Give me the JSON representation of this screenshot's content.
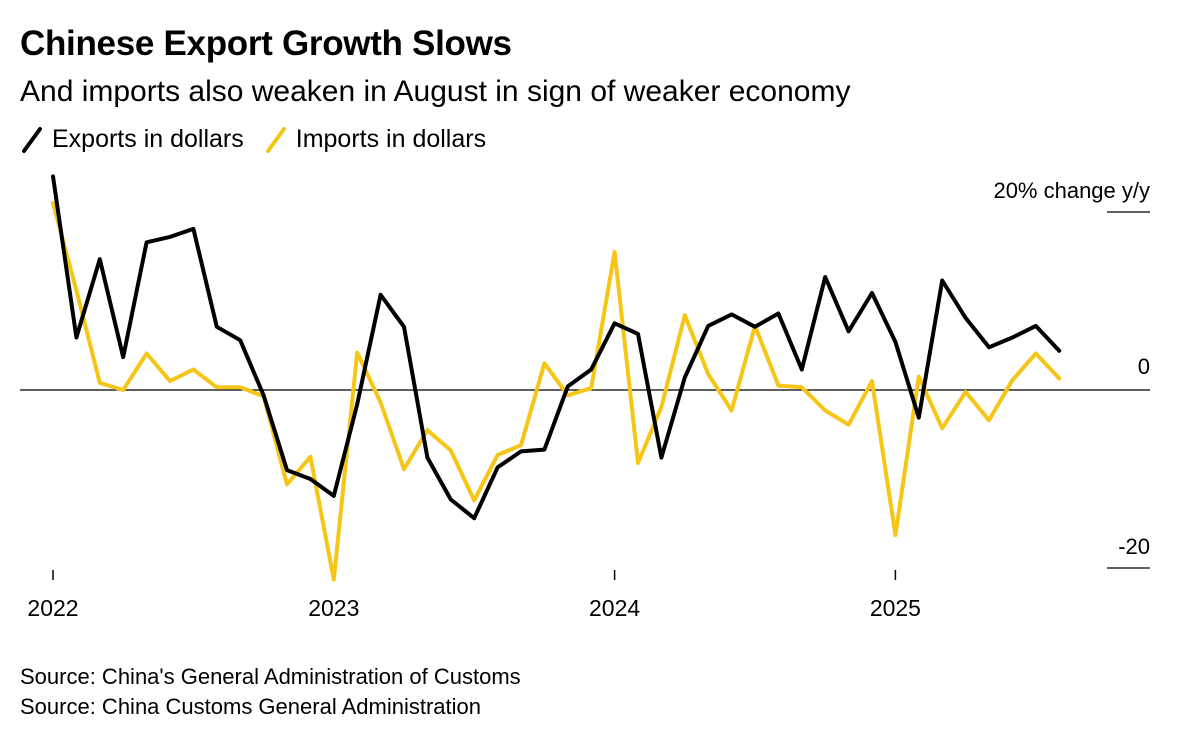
{
  "title": "Chinese Export Growth Slows",
  "subtitle": "And imports also weaken in August in sign of weaker economy",
  "legend": [
    {
      "label": "Exports in dollars",
      "color": "#000000"
    },
    {
      "label": "Imports in dollars",
      "color": "#f5c518"
    }
  ],
  "sources": [
    "Source: China's General Administration of Customs",
    "Source: China Customs General Administration"
  ],
  "chart_data": {
    "type": "line",
    "title": "Chinese Export Growth Slows",
    "subtitle": "And imports also weaken in August in sign of weaker economy",
    "ylabel": "% change y/y",
    "ylim": [
      -20,
      20
    ],
    "y_ticks": [
      {
        "value": 20,
        "label": "20% change y/y"
      },
      {
        "value": 0,
        "label": "0"
      },
      {
        "value": -20,
        "label": "-20"
      }
    ],
    "x_ticks": [
      {
        "index": 0,
        "label": "2022"
      },
      {
        "index": 12,
        "label": "2023"
      },
      {
        "index": 24,
        "label": "2024"
      },
      {
        "index": 36,
        "label": "2025"
      }
    ],
    "x_start": "2022-01",
    "x_end": "2025-08",
    "series": [
      {
        "name": "Exports in dollars",
        "color": "#000000",
        "values": [
          24.0,
          5.9,
          14.7,
          3.7,
          16.6,
          17.2,
          18.1,
          7.1,
          5.6,
          -0.6,
          -9.0,
          -10.0,
          -11.9,
          -1.6,
          10.7,
          7.1,
          -7.6,
          -12.3,
          -14.4,
          -8.7,
          -6.9,
          -6.7,
          0.4,
          2.3,
          7.5,
          6.3,
          -7.6,
          1.4,
          7.2,
          8.5,
          7.1,
          8.6,
          2.3,
          12.7,
          6.6,
          10.9,
          5.4,
          -3.1,
          12.3,
          8.1,
          4.8,
          5.9,
          7.2,
          4.4
        ],
        "values_note": "monthly Jan 2022 - Aug 2025"
      },
      {
        "name": "Imports in dollars",
        "color": "#f5c518",
        "values": [
          21.0,
          11.2,
          0.8,
          0.0,
          4.1,
          1.0,
          2.3,
          0.3,
          0.3,
          -0.7,
          -10.6,
          -7.5,
          -21.3,
          4.2,
          -1.4,
          -8.9,
          -4.5,
          -6.8,
          -12.4,
          -7.3,
          -6.2,
          3.0,
          -0.6,
          0.2,
          15.5,
          -8.2,
          -1.9,
          8.4,
          1.8,
          -2.3,
          7.2,
          0.5,
          0.3,
          -2.3,
          -3.9,
          1.0,
          -16.3,
          1.5,
          -4.3,
          -0.2,
          -3.4,
          1.1,
          4.1,
          1.3
        ],
        "values_note": "monthly Jan 2022 - Aug 2025"
      }
    ]
  }
}
